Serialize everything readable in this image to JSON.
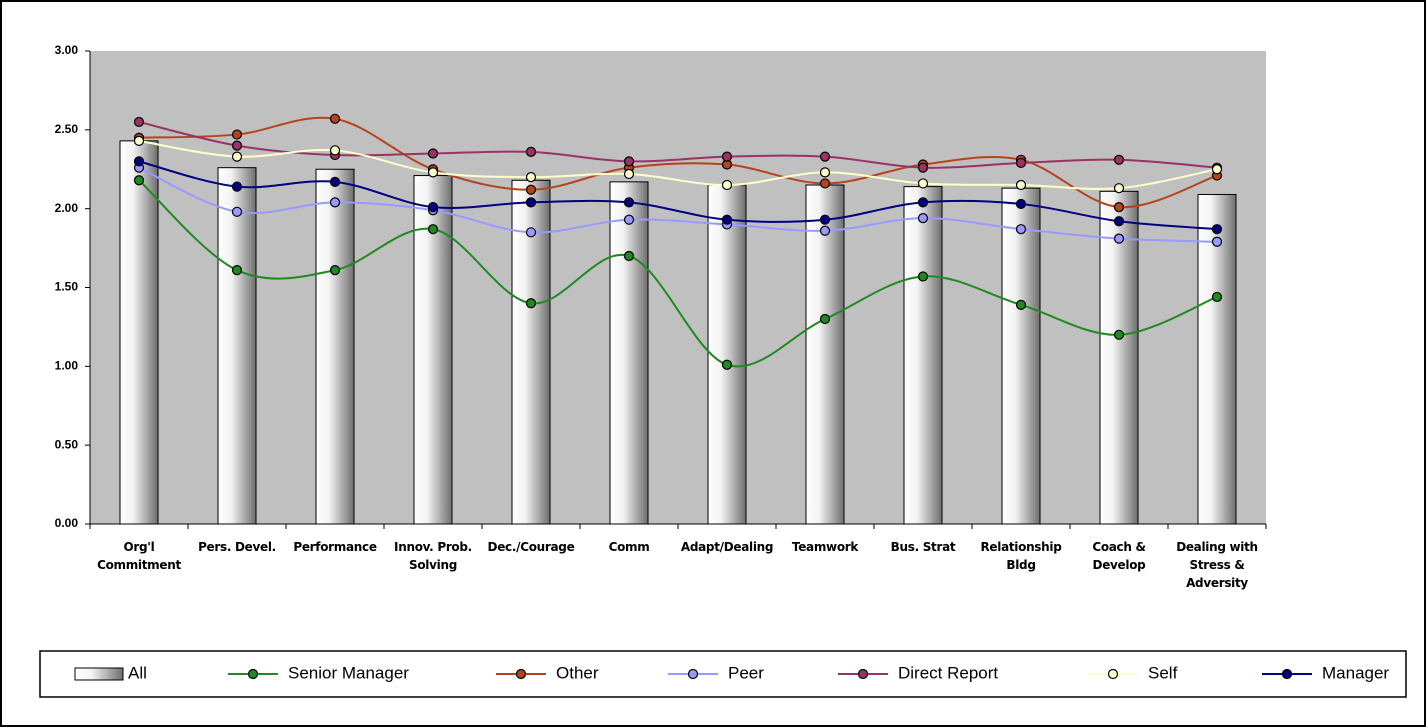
{
  "chart_data": {
    "type": "bar-line",
    "categories": [
      "Org'l Commitment",
      "Pers. Devel.",
      "Performance",
      "Innov. Prob. Solving",
      "Dec./Courage",
      "Comm",
      "Adapt/Dealing",
      "Teamwork",
      "Bus. Strat",
      "Relationship Bldg",
      "Coach & Develop",
      "Dealing with Stress & Adversity"
    ],
    "series": [
      {
        "name": "All",
        "type": "bar",
        "color": "#a0a0a0",
        "values": [
          2.43,
          2.26,
          2.25,
          2.21,
          2.18,
          2.17,
          2.15,
          2.15,
          2.14,
          2.13,
          2.11,
          2.09
        ]
      },
      {
        "name": "Senior Manager",
        "type": "line",
        "color": "#1f8a1f",
        "values": [
          2.18,
          1.61,
          1.61,
          1.87,
          1.4,
          1.7,
          1.01,
          1.3,
          1.57,
          1.39,
          1.2,
          1.44
        ]
      },
      {
        "name": "Other",
        "type": "line",
        "color": "#b4441c",
        "values": [
          2.45,
          2.47,
          2.57,
          2.25,
          2.12,
          2.26,
          2.28,
          2.16,
          2.28,
          2.31,
          2.01,
          2.21
        ]
      },
      {
        "name": "Peer",
        "type": "line",
        "color": "#9999ff",
        "values": [
          2.26,
          1.98,
          2.04,
          1.99,
          1.85,
          1.93,
          1.9,
          1.86,
          1.94,
          1.87,
          1.81,
          1.79
        ]
      },
      {
        "name": "Direct Report",
        "type": "line",
        "color": "#993366",
        "values": [
          2.55,
          2.4,
          2.34,
          2.35,
          2.36,
          2.3,
          2.33,
          2.33,
          2.26,
          2.29,
          2.31,
          2.26
        ]
      },
      {
        "name": "Self",
        "type": "line",
        "color": "#ffffcc",
        "values": [
          2.43,
          2.33,
          2.37,
          2.23,
          2.2,
          2.22,
          2.15,
          2.23,
          2.16,
          2.15,
          2.13,
          2.25
        ]
      },
      {
        "name": "Manager",
        "type": "line",
        "color": "#000080",
        "values": [
          2.3,
          2.14,
          2.17,
          2.01,
          2.04,
          2.04,
          1.93,
          1.93,
          2.04,
          2.03,
          1.92,
          1.87
        ]
      }
    ],
    "ylim": [
      0,
      3
    ],
    "yticks": [
      {
        "value": 0,
        "label": "0.00"
      },
      {
        "value": 0.5,
        "label": "0.50"
      },
      {
        "value": 1,
        "label": "1.00"
      },
      {
        "value": 1.5,
        "label": "1.50"
      },
      {
        "value": 2,
        "label": "2.00"
      },
      {
        "value": 2.5,
        "label": "2.50"
      },
      {
        "value": 3,
        "label": "3.00"
      }
    ],
    "plot_background": "#c0c0c0",
    "legend": "bottom"
  }
}
